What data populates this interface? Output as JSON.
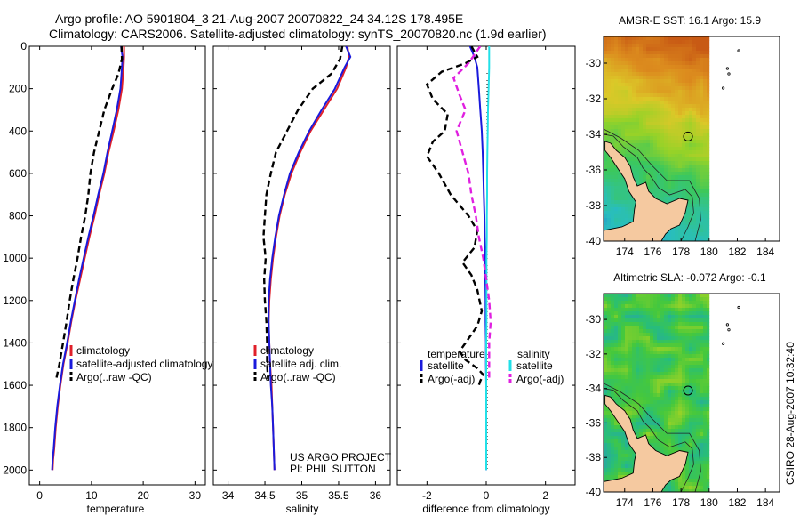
{
  "figure": {
    "title_line1": "Argo profile: AO 5901804_3 21-Aug-2007 20070822_24 34.12S 178.495E",
    "title_line2": "Climatology: CARS2006. Satellite-adjusted climatology: synTS_20070820.nc (1.9d earlier)",
    "credit": "CSIRO 28-Aug-2007 10:32:40",
    "project_line1": "US ARGO PROJECT",
    "project_line2": "PI: PHIL SUTTON"
  },
  "colors": {
    "climatology": "#e0202a",
    "satellite": "#1a1adc",
    "argo": "#000000",
    "salinity_satellite": "#22e0e8",
    "salinity_argo": "#e020e0",
    "land": "#f5c9a0"
  },
  "chart_data": [
    {
      "id": "temperature",
      "type": "line",
      "xlabel": "temperature",
      "ylabel": "",
      "xlim": [
        -2,
        32
      ],
      "ylim": [
        2070,
        0
      ],
      "xticks": [
        0,
        10,
        20,
        30
      ],
      "yticks": [
        0,
        200,
        400,
        600,
        800,
        1000,
        1200,
        1400,
        1600,
        1800,
        2000
      ],
      "legend_position": "lower-right",
      "series": [
        {
          "name": "climatology",
          "color": "#e0202a",
          "dash": "solid",
          "x": [
            16.3,
            16.3,
            16.2,
            15.9,
            15.2,
            14.3,
            13.3,
            12.5,
            11.5,
            10.6,
            9.6,
            8.7,
            7.8,
            6.9,
            6.1,
            5.4,
            4.6,
            4.0,
            3.5,
            3.1,
            2.8,
            2.6,
            2.5
          ],
          "y": [
            0,
            50,
            100,
            200,
            300,
            400,
            500,
            600,
            700,
            800,
            900,
            1000,
            1100,
            1200,
            1300,
            1400,
            1500,
            1600,
            1700,
            1800,
            1900,
            1950,
            2000
          ]
        },
        {
          "name": "satellite-adjusted climatology",
          "color": "#1a1adc",
          "dash": "solid",
          "x": [
            15.7,
            16.0,
            15.9,
            15.6,
            14.9,
            14.0,
            13.1,
            12.3,
            11.3,
            10.4,
            9.4,
            8.5,
            7.6,
            6.8,
            6.0,
            5.3,
            4.5,
            3.9,
            3.4,
            3.0,
            2.7,
            2.5,
            2.4
          ],
          "y": [
            0,
            50,
            100,
            200,
            300,
            400,
            500,
            600,
            700,
            800,
            900,
            1000,
            1100,
            1200,
            1300,
            1400,
            1500,
            1600,
            1700,
            1800,
            1900,
            1950,
            2000
          ]
        },
        {
          "name": "Argo(..raw -QC)",
          "color": "#000000",
          "dash": "dash",
          "x": [
            15.8,
            15.9,
            15.2,
            14.0,
            12.5,
            11.5,
            10.5,
            9.8,
            9.4,
            8.8,
            8.0,
            7.3,
            6.5,
            5.8,
            5.2,
            4.5,
            3.8,
            3.2
          ],
          "y": [
            0,
            60,
            130,
            200,
            300,
            400,
            500,
            600,
            700,
            800,
            900,
            1000,
            1100,
            1200,
            1300,
            1400,
            1500,
            1570
          ]
        }
      ]
    },
    {
      "id": "salinity",
      "type": "line",
      "xlabel": "salinity",
      "ylabel": "",
      "xlim": [
        33.8,
        36.2
      ],
      "ylim": [
        2070,
        0
      ],
      "xticks": [
        34,
        34.5,
        35,
        35.5,
        36
      ],
      "yticks": [
        0,
        200,
        400,
        600,
        800,
        1000,
        1200,
        1400,
        1600,
        1800,
        2000
      ],
      "legend_position": "lower-right",
      "series": [
        {
          "name": "climatology",
          "color": "#e0202a",
          "dash": "solid",
          "x": [
            35.62,
            35.64,
            35.6,
            35.48,
            35.3,
            35.12,
            34.98,
            34.86,
            34.77,
            34.7,
            34.65,
            34.61,
            34.58,
            34.56,
            34.55,
            34.56,
            34.57,
            34.59,
            34.6,
            34.61,
            34.62,
            34.63
          ],
          "y": [
            0,
            50,
            100,
            200,
            300,
            400,
            500,
            600,
            700,
            800,
            900,
            1000,
            1100,
            1200,
            1300,
            1400,
            1500,
            1600,
            1700,
            1800,
            1900,
            2000
          ]
        },
        {
          "name": "satellite adj. clim.",
          "color": "#1a1adc",
          "dash": "solid",
          "x": [
            35.6,
            35.66,
            35.58,
            35.45,
            35.27,
            35.1,
            34.96,
            34.84,
            34.76,
            34.69,
            34.64,
            34.6,
            34.57,
            34.55,
            34.55,
            34.56,
            34.57,
            34.58,
            34.6,
            34.61,
            34.62,
            34.63
          ],
          "y": [
            0,
            50,
            100,
            200,
            300,
            400,
            500,
            600,
            700,
            800,
            900,
            1000,
            1100,
            1200,
            1300,
            1400,
            1500,
            1600,
            1700,
            1800,
            1900,
            2000
          ]
        },
        {
          "name": "Argo(..raw -QC)",
          "color": "#000000",
          "dash": "dash",
          "x": [
            35.55,
            35.52,
            35.4,
            35.15,
            34.95,
            34.8,
            34.65,
            34.58,
            34.52,
            34.5,
            34.48,
            34.51,
            34.49,
            34.5,
            34.52,
            34.53,
            34.53,
            34.54
          ],
          "y": [
            0,
            60,
            130,
            200,
            300,
            400,
            500,
            600,
            700,
            800,
            900,
            1000,
            1100,
            1200,
            1300,
            1400,
            1500,
            1570
          ]
        }
      ]
    },
    {
      "id": "difference",
      "type": "line",
      "xlabel": "difference from climatology",
      "ylabel": "",
      "xlim": [
        -3,
        3
      ],
      "ylim": [
        2070,
        0
      ],
      "xticks": [
        -2,
        0,
        2
      ],
      "yticks": [
        0,
        200,
        400,
        600,
        800,
        1000,
        1200,
        1400,
        1600,
        1800,
        2000
      ],
      "legend_position": "lower-center",
      "legend_headers": [
        "temperature",
        "salinity"
      ],
      "series": [
        {
          "name": "satellite",
          "group": "temperature",
          "color": "#1a1adc",
          "dash": "solid",
          "x": [
            -0.55,
            -0.4,
            -0.3,
            -0.25,
            -0.2,
            -0.15,
            -0.12,
            -0.1,
            -0.08,
            -0.06,
            -0.05,
            -0.04,
            -0.03,
            -0.02,
            -0.02,
            -0.01,
            -0.01,
            0,
            0,
            0,
            0,
            0
          ],
          "y": [
            0,
            50,
            100,
            200,
            300,
            400,
            500,
            600,
            700,
            800,
            900,
            1000,
            1100,
            1200,
            1300,
            1400,
            1500,
            1600,
            1700,
            1800,
            1900,
            2000
          ]
        },
        {
          "name": "Argo(-adj)",
          "group": "temperature",
          "color": "#000000",
          "dash": "dash",
          "x": [
            -0.5,
            -0.3,
            -0.7,
            -1.5,
            -2.0,
            -1.8,
            -1.3,
            -1.4,
            -1.8,
            -2.0,
            -1.6,
            -1.2,
            -0.6,
            -0.3,
            -0.4,
            -0.8,
            -0.5,
            -0.3,
            -0.15,
            -0.3,
            -0.6,
            -0.9,
            -0.7,
            -0.3,
            -0.1,
            -0.2,
            -0.25
          ],
          "y": [
            0,
            50,
            80,
            120,
            180,
            250,
            320,
            400,
            450,
            520,
            600,
            700,
            800,
            870,
            950,
            1020,
            1080,
            1150,
            1250,
            1320,
            1380,
            1440,
            1480,
            1520,
            1550,
            1580,
            1600
          ]
        },
        {
          "name": "satellite",
          "group": "salinity",
          "color": "#22e0e8",
          "dash": "solid",
          "x": [
            0.1,
            0.1,
            0.1,
            0.08,
            0.06,
            0.05,
            0.04,
            0.03,
            0.03,
            0.02,
            0.02,
            0.01,
            0.01,
            0.01,
            0.01,
            0,
            0,
            0,
            0,
            0,
            0,
            0
          ],
          "y": [
            0,
            50,
            100,
            200,
            300,
            400,
            500,
            600,
            700,
            800,
            900,
            1000,
            1100,
            1200,
            1300,
            1400,
            1500,
            1600,
            1700,
            1800,
            1900,
            2000
          ]
        },
        {
          "name": "Argo(-adj)",
          "group": "salinity",
          "color": "#e020e0",
          "dash": "dash",
          "x": [
            -0.2,
            -0.6,
            -1.1,
            -0.9,
            -0.7,
            -1.0,
            -0.8,
            -0.6,
            -0.5,
            -0.35,
            -0.25,
            -0.1,
            0.0,
            0.1,
            0.15,
            0.1,
            0.1,
            0.1
          ],
          "y": [
            0,
            80,
            150,
            230,
            300,
            400,
            500,
            600,
            700,
            800,
            900,
            1000,
            1100,
            1200,
            1300,
            1400,
            1500,
            1570
          ]
        }
      ]
    },
    {
      "id": "sst_map",
      "type": "heatmap",
      "title": "AMSR-E SST: 16.1 Argo: 15.9",
      "xlim": [
        172.5,
        185
      ],
      "ylim": [
        -40,
        -28.5
      ],
      "xticks": [
        174,
        176,
        178,
        180,
        182,
        184
      ],
      "yticks": [
        -30,
        -32,
        -34,
        -36,
        -38,
        -40
      ],
      "ytick_labels": [
        "-30",
        "-32",
        "-34",
        "-36",
        "-38",
        "-40"
      ],
      "data_edge_lon": 180,
      "float_position": {
        "lon": 178.5,
        "lat": -34.12
      }
    },
    {
      "id": "sla_map",
      "type": "heatmap",
      "title": "Altimetric SLA: -0.072 Argo: -0.1",
      "xlim": [
        172.5,
        185
      ],
      "ylim": [
        -40,
        -28.5
      ],
      "xticks": [
        174,
        176,
        178,
        180,
        182,
        184
      ],
      "yticks": [
        -30,
        -32,
        -34,
        -36,
        -38,
        -40
      ],
      "ytick_labels": [
        "-30",
        "-32",
        "-34",
        "-36",
        "-38",
        "-40"
      ],
      "data_edge_lon": 180,
      "float_position": {
        "lon": 178.5,
        "lat": -34.12
      }
    }
  ]
}
